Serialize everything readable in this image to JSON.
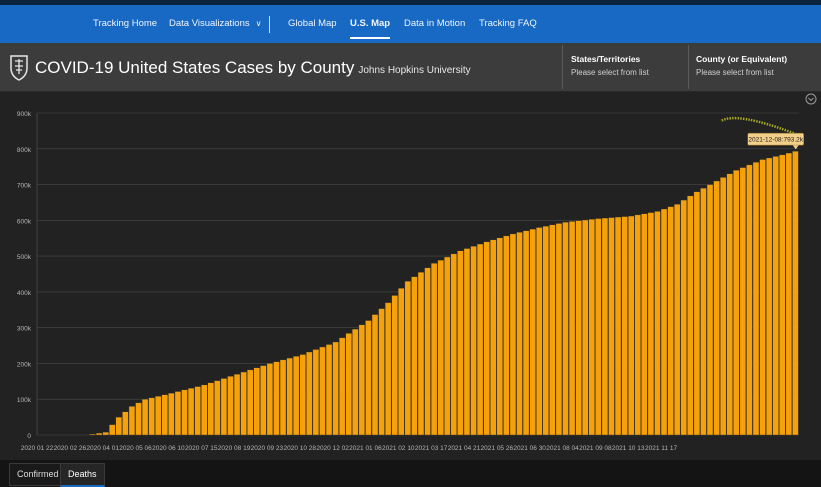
{
  "nav": {
    "items": [
      {
        "label": "Tracking Home"
      },
      {
        "label": "Data Visualizations"
      },
      {
        "label": "Global Map"
      },
      {
        "label": "U.S. Map"
      },
      {
        "label": "Data in Motion"
      },
      {
        "label": "Tracking FAQ"
      }
    ]
  },
  "header": {
    "title": "COVID-19 United States Cases by County",
    "subtitle": "Johns Hopkins University",
    "states": {
      "label": "States/Territories",
      "value": "Please select from list"
    },
    "county": {
      "label": "County (or Equivalent)",
      "value": "Please select from list"
    }
  },
  "tabs": [
    {
      "label": "Confirmed"
    },
    {
      "label": "Deaths"
    }
  ],
  "chart_data": {
    "type": "bar",
    "title": "",
    "xlabel": "",
    "ylabel": "",
    "ylim": [
      0,
      900000
    ],
    "y_ticks": [
      {
        "value": 0,
        "label": "0"
      },
      {
        "value": 100000,
        "label": "100k"
      },
      {
        "value": 200000,
        "label": "200k"
      },
      {
        "value": 300000,
        "label": "300k"
      },
      {
        "value": 400000,
        "label": "400k"
      },
      {
        "value": 500000,
        "label": "500k"
      },
      {
        "value": 600000,
        "label": "600k"
      },
      {
        "value": 700000,
        "label": "700k"
      },
      {
        "value": 800000,
        "label": "800k"
      },
      {
        "value": 900000,
        "label": "900k"
      }
    ],
    "x_tick_labels": [
      "2020 01 22",
      "2020 02 26",
      "2020 04 01",
      "2020 05 06",
      "2020 06 10",
      "2020 07 15",
      "2020 08 19",
      "2020 09 23",
      "2020 10 28",
      "2020 12 02",
      "2021 01 06",
      "2021 02 10",
      "2021 03 17",
      "2021 04 21",
      "2021 05 26",
      "2021 06 30",
      "2021 08 04",
      "2021 09 08",
      "2021 10 13",
      "2021 11 17"
    ],
    "tooltip": {
      "label": "2021-12-08:793.2k",
      "value": 793200
    },
    "anchors": [
      {
        "week": 0,
        "value": 0
      },
      {
        "week": 7,
        "value": 0
      },
      {
        "week": 10,
        "value": 8000
      },
      {
        "week": 12,
        "value": 50000
      },
      {
        "week": 14,
        "value": 80000
      },
      {
        "week": 16,
        "value": 100000
      },
      {
        "week": 20,
        "value": 117000
      },
      {
        "week": 25,
        "value": 140000
      },
      {
        "week": 30,
        "value": 170000
      },
      {
        "week": 35,
        "value": 200000
      },
      {
        "week": 40,
        "value": 225000
      },
      {
        "week": 45,
        "value": 260000
      },
      {
        "week": 50,
        "value": 320000
      },
      {
        "week": 53,
        "value": 370000
      },
      {
        "week": 56,
        "value": 430000
      },
      {
        "week": 60,
        "value": 480000
      },
      {
        "week": 64,
        "value": 515000
      },
      {
        "week": 68,
        "value": 540000
      },
      {
        "week": 72,
        "value": 562000
      },
      {
        "week": 76,
        "value": 580000
      },
      {
        "week": 80,
        "value": 595000
      },
      {
        "week": 85,
        "value": 605000
      },
      {
        "week": 90,
        "value": 612000
      },
      {
        "week": 94,
        "value": 625000
      },
      {
        "week": 97,
        "value": 645000
      },
      {
        "week": 100,
        "value": 680000
      },
      {
        "week": 103,
        "value": 710000
      },
      {
        "week": 106,
        "value": 740000
      },
      {
        "week": 110,
        "value": 770000
      },
      {
        "week": 113,
        "value": 783000
      },
      {
        "week": 115,
        "value": 793200
      }
    ],
    "weeks": 116
  },
  "colors": {
    "bar": "#f5a10c",
    "bar_stroke": "#2a2a2a",
    "grid": "#4a4a4a",
    "axis_text": "#b5b5b5",
    "tooltip_bg": "#f3d08a"
  }
}
